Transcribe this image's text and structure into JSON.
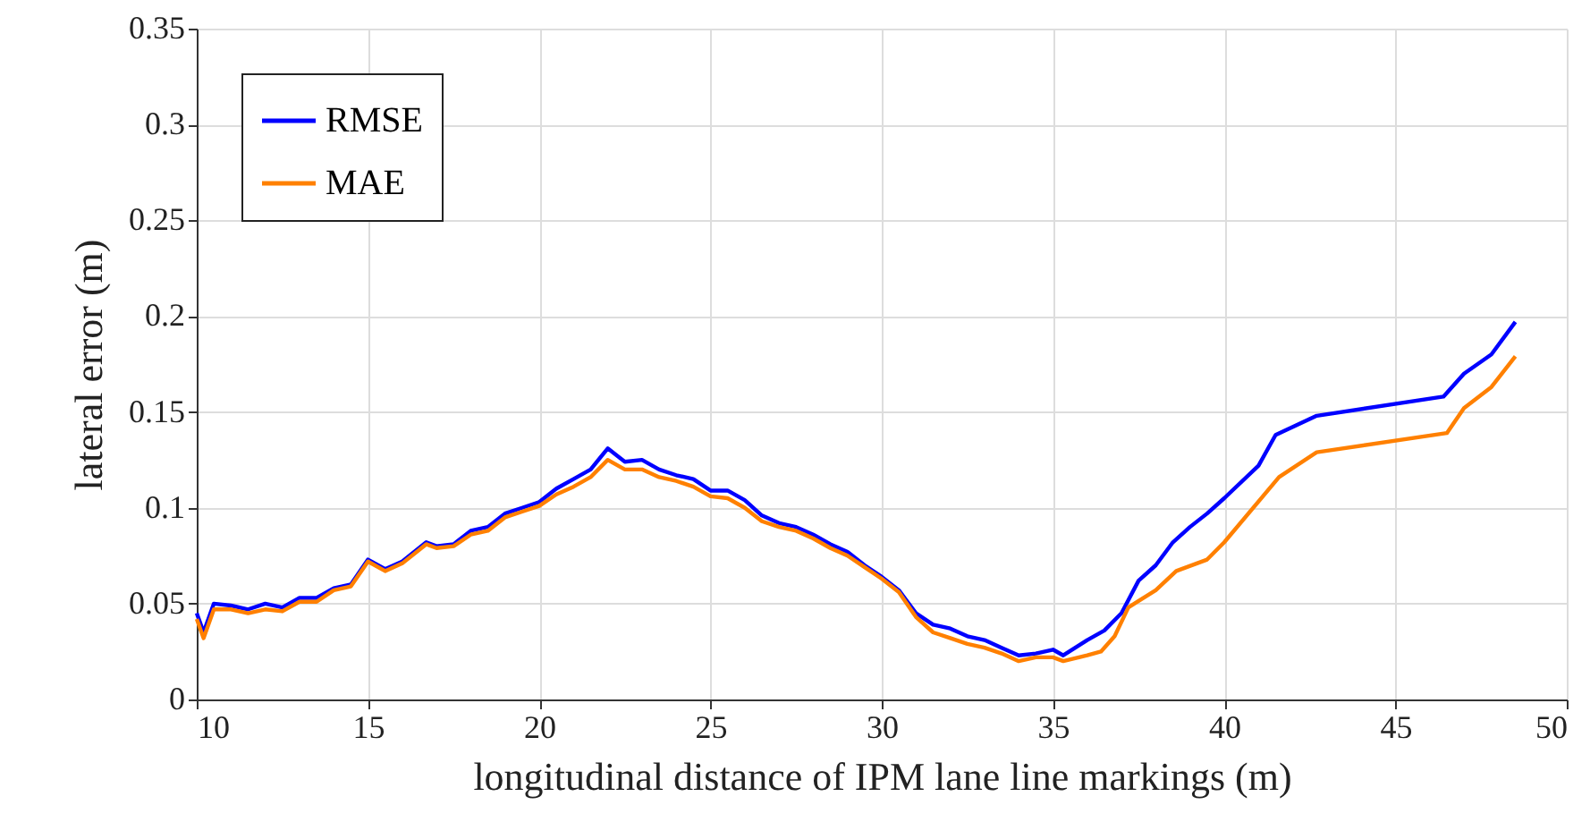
{
  "chart_data": {
    "type": "line",
    "xlabel": "longitudinal distance of IPM lane line markings (m)",
    "ylabel": "lateral error (m)",
    "xlim": [
      10,
      50
    ],
    "xticks": [
      10,
      15,
      20,
      25,
      30,
      35,
      40,
      45,
      50
    ],
    "ylim": [
      0,
      0.35
    ],
    "yticks": [
      0,
      0.05,
      0.1,
      0.15,
      0.2,
      0.25,
      0.3,
      0.35
    ],
    "grid": true,
    "legend": "top left",
    "line_style": "solid",
    "marker": "none",
    "series": [
      {
        "name": "RMSE",
        "color": "#0000ff",
        "x": [
          10,
          10.2,
          10.5,
          11,
          11.5,
          12,
          12.5,
          13,
          13.5,
          14,
          14.5,
          15,
          15.5,
          16,
          16.7,
          17,
          17.5,
          18,
          18.5,
          19,
          19.5,
          20,
          20.5,
          21,
          21.5,
          22,
          22.5,
          23,
          23.5,
          24,
          24.5,
          25,
          25.5,
          26,
          26.5,
          27,
          27.5,
          28,
          28.5,
          29,
          29.5,
          30,
          30.5,
          31,
          31.5,
          32,
          32.5,
          33,
          33.5,
          34,
          34.5,
          35,
          35.3,
          36,
          36.5,
          37,
          37.5,
          38,
          38.5,
          39,
          39.5,
          40,
          41,
          41.5,
          42.7,
          46.4,
          47,
          47.8,
          48.5
        ],
        "values": [
          0.045,
          0.035,
          0.05,
          0.049,
          0.047,
          0.05,
          0.048,
          0.053,
          0.053,
          0.058,
          0.06,
          0.073,
          0.068,
          0.072,
          0.082,
          0.08,
          0.081,
          0.088,
          0.09,
          0.097,
          0.1,
          0.103,
          0.11,
          0.115,
          0.12,
          0.131,
          0.124,
          0.125,
          0.12,
          0.117,
          0.115,
          0.109,
          0.109,
          0.104,
          0.096,
          0.092,
          0.09,
          0.086,
          0.081,
          0.077,
          0.07,
          0.064,
          0.057,
          0.045,
          0.039,
          0.037,
          0.033,
          0.031,
          0.027,
          0.023,
          0.024,
          0.026,
          0.023,
          0.031,
          0.036,
          0.045,
          0.062,
          0.07,
          0.082,
          0.09,
          0.097,
          0.105,
          0.122,
          0.138,
          0.148,
          0.158,
          0.17,
          0.18,
          0.197
        ]
      },
      {
        "name": "MAE",
        "color": "#ff8000",
        "x": [
          10,
          10.2,
          10.5,
          11,
          11.5,
          12,
          12.5,
          13,
          13.5,
          14,
          14.5,
          15,
          15.5,
          16,
          16.7,
          17,
          17.5,
          18,
          18.5,
          19,
          19.5,
          20,
          20.5,
          21,
          21.5,
          22,
          22.5,
          23,
          23.5,
          24,
          24.5,
          25,
          25.5,
          26,
          26.5,
          27,
          27.5,
          28,
          28.5,
          29,
          29.5,
          30,
          30.5,
          31,
          31.5,
          32,
          32.5,
          33,
          33.5,
          34,
          34.5,
          35,
          35.3,
          36,
          36.4,
          36.8,
          37.2,
          38,
          38.6,
          39.5,
          40,
          41.6,
          42.7,
          46.5,
          47,
          47.8,
          48.5
        ],
        "values": [
          0.042,
          0.032,
          0.047,
          0.047,
          0.045,
          0.047,
          0.046,
          0.051,
          0.051,
          0.057,
          0.059,
          0.072,
          0.067,
          0.071,
          0.081,
          0.079,
          0.08,
          0.086,
          0.088,
          0.095,
          0.098,
          0.101,
          0.107,
          0.111,
          0.116,
          0.125,
          0.12,
          0.12,
          0.116,
          0.114,
          0.111,
          0.106,
          0.105,
          0.1,
          0.093,
          0.09,
          0.088,
          0.084,
          0.079,
          0.075,
          0.069,
          0.063,
          0.056,
          0.043,
          0.035,
          0.032,
          0.029,
          0.027,
          0.024,
          0.02,
          0.022,
          0.022,
          0.02,
          0.023,
          0.025,
          0.033,
          0.048,
          0.057,
          0.067,
          0.073,
          0.082,
          0.116,
          0.129,
          0.139,
          0.152,
          0.163,
          0.179
        ]
      }
    ]
  }
}
